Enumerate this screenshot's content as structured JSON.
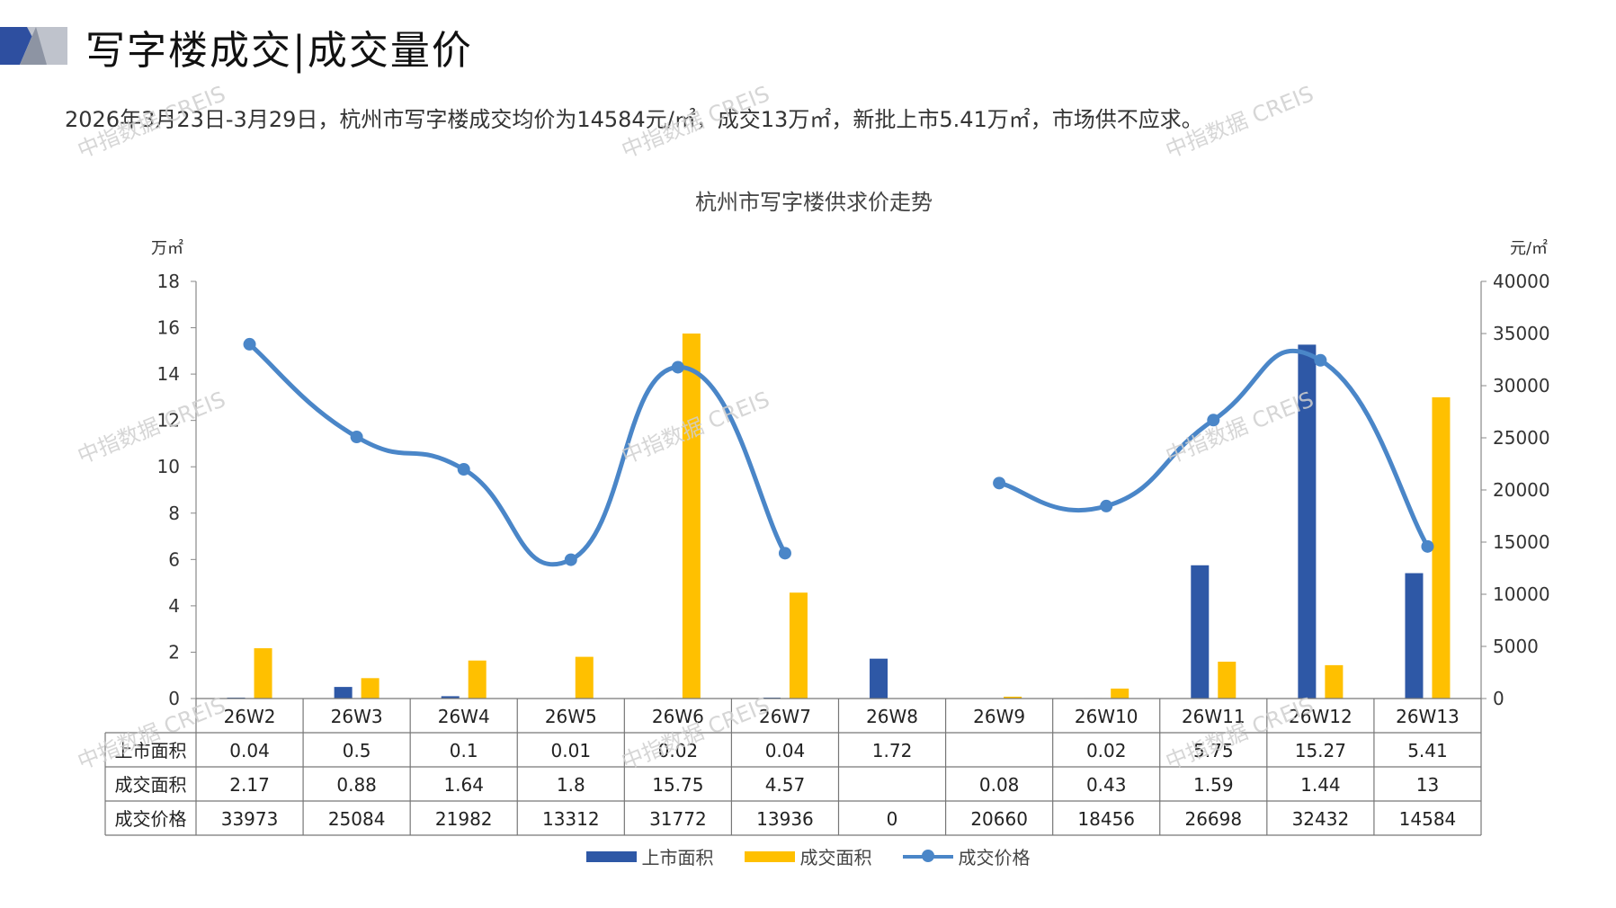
{
  "header": {
    "title": "写字楼成交|成交量价",
    "summary": "2026年3月23日-3月29日，杭州市写字楼成交均价为14584元/㎡，成交13万㎡，新批上市5.41万㎡，市场供不应求。"
  },
  "watermark": "中指数据 CREIS",
  "colors": {
    "supply": "#2E58A6",
    "deal_area": "#FFC000",
    "price": "#4A86C8",
    "logo_dark": "#2E4FA0",
    "logo_light": "#BFC3CC"
  },
  "chart_data": {
    "type": "bar",
    "title": "杭州市写字楼供求价走势",
    "y_left_unit": "万㎡",
    "y_right_unit": "元/㎡",
    "ylim_left": [
      0,
      18
    ],
    "ylim_right": [
      0,
      40000
    ],
    "y_left_ticks": [
      "0",
      "2",
      "4",
      "6",
      "8",
      "10",
      "12",
      "14",
      "16",
      "18"
    ],
    "y_right_ticks": [
      "0",
      "5000",
      "10000",
      "15000",
      "20000",
      "25000",
      "30000",
      "35000",
      "40000"
    ],
    "categories": [
      "26W2",
      "26W3",
      "26W4",
      "26W5",
      "26W6",
      "26W7",
      "26W8",
      "26W9",
      "26W10",
      "26W11",
      "26W12",
      "26W13"
    ],
    "series": [
      {
        "name": "上市面积",
        "type": "bar",
        "axis": "left",
        "color": "#2E58A6",
        "values": [
          0.04,
          0.5,
          0.1,
          0.01,
          0.02,
          0.04,
          1.72,
          null,
          0.02,
          5.75,
          15.27,
          5.41
        ],
        "labels": [
          "0.04",
          "0.5",
          "0.1",
          "0.01",
          "0.02",
          "0.04",
          "1.72",
          "",
          "0.02",
          "5.75",
          "15.27",
          "5.41"
        ]
      },
      {
        "name": "成交面积",
        "type": "bar",
        "axis": "left",
        "color": "#FFC000",
        "values": [
          2.17,
          0.88,
          1.64,
          1.8,
          15.75,
          4.57,
          null,
          0.08,
          0.43,
          1.59,
          1.44,
          13
        ],
        "labels": [
          "2.17",
          "0.88",
          "1.64",
          "1.8",
          "15.75",
          "4.57",
          "",
          "0.08",
          "0.43",
          "1.59",
          "1.44",
          "13"
        ]
      },
      {
        "name": "成交价格",
        "type": "line",
        "axis": "right",
        "color": "#4A86C8",
        "values": [
          33973,
          25084,
          21982,
          13312,
          31772,
          13936,
          0,
          20660,
          18456,
          26698,
          32432,
          14584
        ],
        "labels": [
          "33973",
          "25084",
          "21982",
          "13312",
          "31772",
          "13936",
          "0",
          "20660",
          "18456",
          "26698",
          "32432",
          "14584"
        ],
        "gaps_at": [
          6
        ]
      }
    ],
    "legend": {
      "position": "bottom"
    },
    "data_table": true
  }
}
